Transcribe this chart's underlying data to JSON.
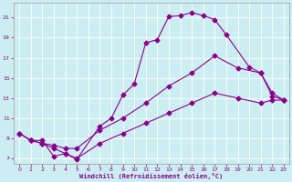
{
  "xlabel": "Windchill (Refroidissement éolien,°C)",
  "bg_color": "#cceef2",
  "grid_color": "#b0d8e0",
  "line_color": "#8b008b",
  "xlim": [
    -0.5,
    23.5
  ],
  "ylim": [
    6.5,
    22.5
  ],
  "xticks": [
    0,
    1,
    2,
    3,
    4,
    5,
    6,
    7,
    8,
    9,
    10,
    11,
    12,
    13,
    14,
    15,
    16,
    17,
    18,
    19,
    20,
    21,
    22,
    23
  ],
  "yticks": [
    7,
    9,
    11,
    13,
    15,
    17,
    19,
    21
  ],
  "line1_x": [
    0,
    1,
    2,
    3,
    4,
    5,
    7,
    8,
    9,
    10,
    11,
    12,
    13,
    14,
    15,
    16,
    17,
    18,
    20,
    21,
    22,
    23
  ],
  "line1_y": [
    9.5,
    8.8,
    8.8,
    7.2,
    7.5,
    6.9,
    10.2,
    11.0,
    13.3,
    14.4,
    18.5,
    18.8,
    21.1,
    21.2,
    21.5,
    21.2,
    20.8,
    19.3,
    16.1,
    15.5,
    13.2,
    12.8
  ],
  "line2_x": [
    0,
    1,
    2,
    3,
    4,
    5,
    7,
    9,
    11,
    13,
    15,
    17,
    19,
    21,
    22,
    23
  ],
  "line2_y": [
    9.5,
    8.8,
    8.5,
    8.3,
    8.0,
    8.0,
    9.8,
    11.0,
    12.5,
    14.2,
    15.5,
    17.2,
    16.0,
    15.5,
    13.5,
    12.8
  ],
  "line3_x": [
    0,
    1,
    2,
    3,
    4,
    5,
    7,
    9,
    11,
    13,
    15,
    17,
    19,
    21,
    22,
    23
  ],
  "line3_y": [
    9.5,
    8.8,
    8.5,
    8.0,
    7.5,
    7.0,
    8.5,
    9.5,
    10.5,
    11.5,
    12.5,
    13.5,
    13.0,
    12.5,
    12.8,
    12.8
  ]
}
